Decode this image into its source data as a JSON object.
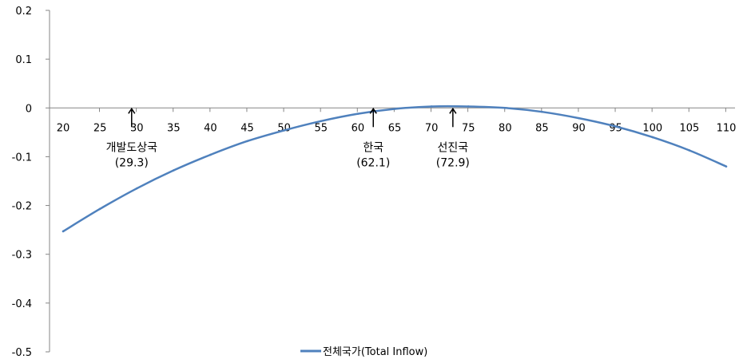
{
  "chart_data": {
    "type": "line",
    "title": "",
    "xlabel": "",
    "ylabel": "",
    "ylim": [
      -0.5,
      0.2
    ],
    "xlim": [
      20,
      110
    ],
    "yticks": [
      0.2,
      0.1,
      0,
      -0.1,
      -0.2,
      -0.3,
      -0.4,
      -0.5
    ],
    "ytick_labels": [
      "0.2",
      "0.1",
      "0",
      "-0.1",
      "-0.2",
      "-0.3",
      "-0.4",
      "-0.5"
    ],
    "xticks": [
      20,
      25,
      30,
      35,
      40,
      45,
      50,
      55,
      60,
      65,
      70,
      75,
      80,
      85,
      90,
      95,
      100,
      105,
      110
    ],
    "xtick_labels": [
      "20",
      "25",
      "30",
      "35",
      "40",
      "45",
      "50",
      "55",
      "60",
      "65",
      "70",
      "75",
      "80",
      "85",
      "90",
      "95",
      "100",
      "105",
      "110"
    ],
    "grid": false,
    "legend_position": "bottom",
    "series": [
      {
        "name": "전체국가(Total Inflow)",
        "color": "#4f81bd",
        "x": [
          20,
          25,
          30,
          35,
          40,
          45,
          50,
          55,
          60,
          65,
          70,
          75,
          80,
          85,
          90,
          95,
          100,
          105,
          110
        ],
        "y": [
          -0.253,
          -0.207,
          -0.165,
          -0.128,
          -0.096,
          -0.068,
          -0.046,
          -0.027,
          -0.012,
          -0.002,
          0.003,
          0.003,
          0.0,
          -0.008,
          -0.021,
          -0.038,
          -0.06,
          -0.087,
          -0.12
        ]
      }
    ],
    "annotations": [
      {
        "x": 29.3,
        "label": "개발도상국",
        "value_label": "(29.3)"
      },
      {
        "x": 62.1,
        "label": "한국",
        "value_label": "(62.1)"
      },
      {
        "x": 72.9,
        "label": "선진국",
        "value_label": "(72.9)"
      }
    ]
  }
}
